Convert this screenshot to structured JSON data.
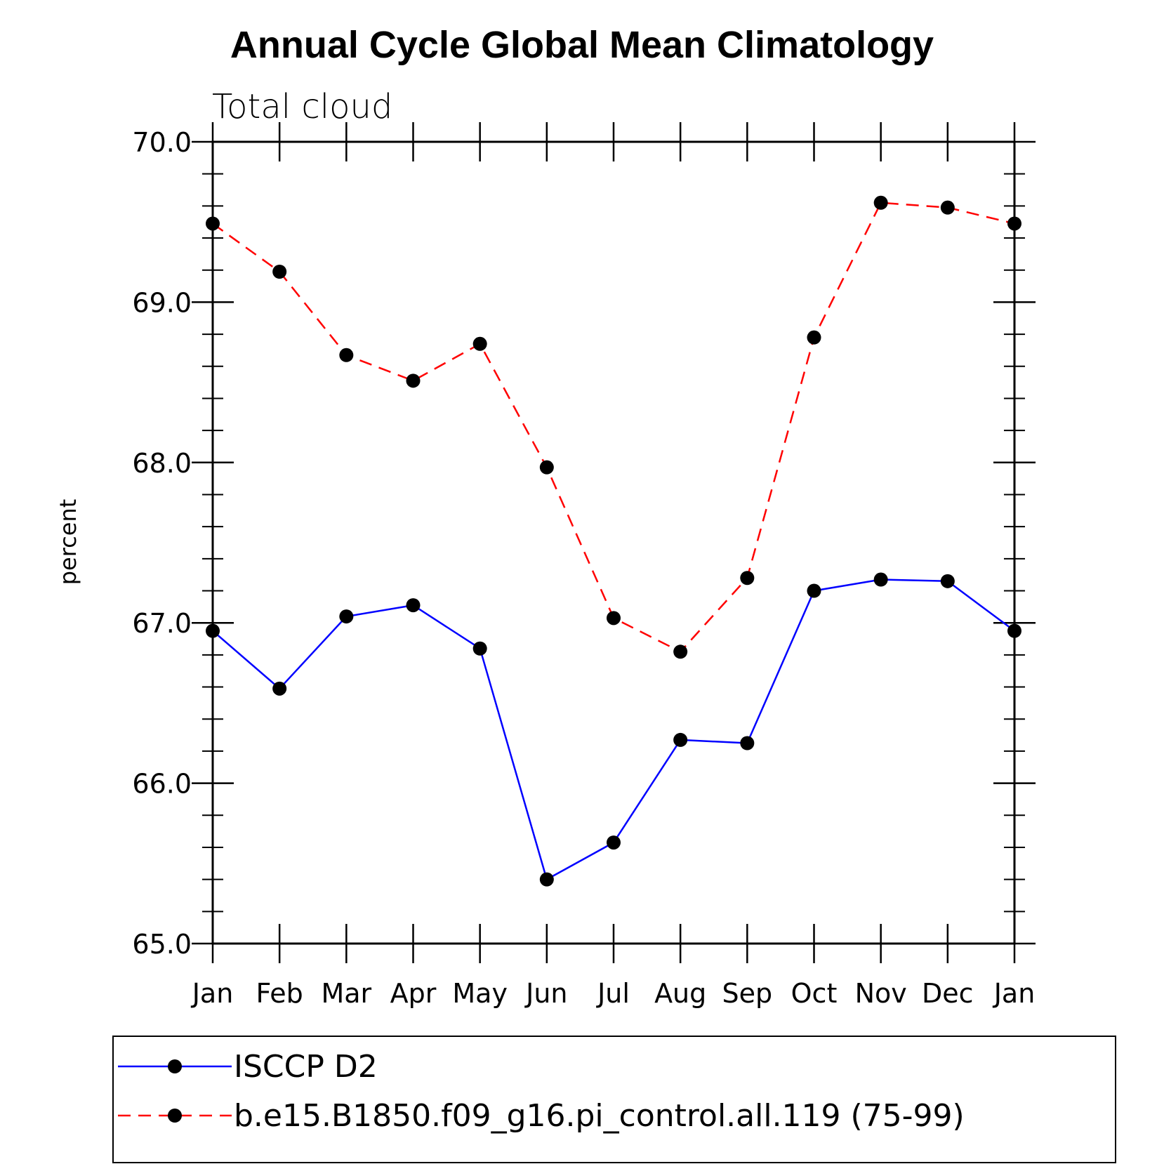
{
  "chart_data": {
    "type": "line",
    "title": "Annual Cycle Global Mean Climatology",
    "subtitle": "Total cloud",
    "xlabel": "",
    "ylabel": "percent",
    "categories": [
      "Jan",
      "Feb",
      "Mar",
      "Apr",
      "May",
      "Jun",
      "Jul",
      "Aug",
      "Sep",
      "Oct",
      "Nov",
      "Dec",
      "Jan"
    ],
    "ylim": [
      65.0,
      70.0
    ],
    "yticks": [
      "65.0",
      "66.0",
      "67.0",
      "68.0",
      "69.0",
      "70.0"
    ],
    "yminor_step": 0.2,
    "grid": false,
    "legend_position": "bottom",
    "series": [
      {
        "name": "ISCCP D2",
        "color": "#0000ff",
        "dash": "solid",
        "marker": "circle",
        "values": [
          66.95,
          66.59,
          67.04,
          67.11,
          66.84,
          65.4,
          65.63,
          66.27,
          66.25,
          67.2,
          67.27,
          67.26,
          66.95
        ]
      },
      {
        "name": "b.e15.B1850.f09_g16.pi_control.all.119 (75-99)",
        "color": "#ff0000",
        "dash": "dashed",
        "marker": "circle",
        "values": [
          69.49,
          69.19,
          68.67,
          68.51,
          68.74,
          67.97,
          67.03,
          66.82,
          67.28,
          68.78,
          69.62,
          69.59,
          69.49
        ]
      }
    ]
  }
}
